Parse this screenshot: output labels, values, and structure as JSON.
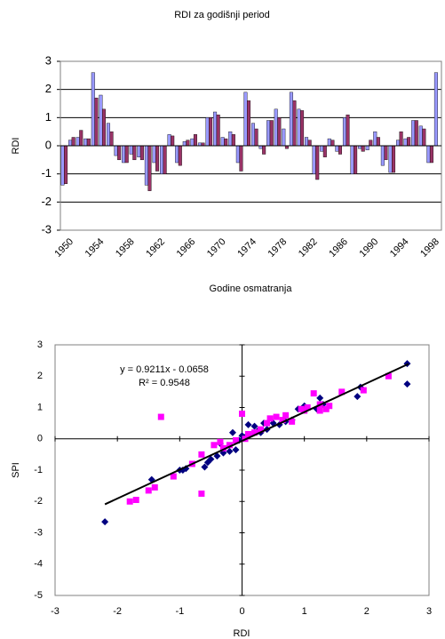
{
  "chart_data": [
    {
      "type": "bar",
      "title": "RDI za godišnji period",
      "x_label": "Godine osmatranja",
      "y_label": "RDI",
      "categories": [
        "1950",
        null,
        null,
        null,
        "1954",
        null,
        null,
        null,
        "1958",
        null,
        null,
        null,
        "1962",
        null,
        null,
        null,
        "1966",
        null,
        null,
        null,
        "1970",
        null,
        null,
        null,
        "1974",
        null,
        null,
        null,
        "1978",
        null,
        null,
        null,
        "1982",
        null,
        null,
        null,
        "1986",
        null,
        null,
        null,
        "1990",
        null,
        null,
        null,
        "1994",
        null,
        null,
        null,
        "1998",
        null
      ],
      "series": [
        {
          "color": "#9999ff",
          "values": [
            -1.4,
            0.2,
            0.3,
            0.25,
            2.6,
            1.8,
            0.8,
            -0.35,
            -0.6,
            -0.3,
            -0.4,
            -1.4,
            -0.6,
            -1.0,
            0.4,
            -0.6,
            0.15,
            0.25,
            0.1,
            1.0,
            1.2,
            0.3,
            0.5,
            -0.6,
            1.9,
            0.8,
            -0.1,
            0.9,
            1.3,
            0.6,
            1.9,
            1.3,
            0.3,
            -1.0,
            -0.2,
            0.25,
            -0.2,
            1.0,
            -1.0,
            -0.1,
            -0.15,
            0.5,
            -0.7,
            -0.95,
            0.2,
            0.25,
            0.9,
            0.7,
            -0.6,
            2.6
          ]
        },
        {
          "color": "#993366",
          "values": [
            -1.35,
            0.3,
            0.55,
            0.25,
            1.7,
            1.3,
            0.5,
            -0.5,
            -0.6,
            -0.5,
            -0.5,
            -1.6,
            -0.9,
            -1.0,
            0.35,
            -0.7,
            0.2,
            0.4,
            0.1,
            1.0,
            1.1,
            0.25,
            0.4,
            -0.9,
            1.6,
            0.6,
            -0.3,
            0.9,
            1.0,
            -0.1,
            1.6,
            1.25,
            0.2,
            -1.2,
            -0.4,
            0.2,
            -0.3,
            1.1,
            -1.0,
            -0.2,
            0.2,
            0.3,
            -0.5,
            -0.95,
            0.5,
            0.3,
            0.9,
            0.6,
            -0.6,
            null
          ]
        }
      ],
      "ylim": [
        -3,
        3
      ],
      "yticks": [
        -3,
        -2,
        -1,
        0,
        1,
        2,
        3
      ],
      "grid": true
    },
    {
      "type": "scatter",
      "x_label": "RDI",
      "y_label": "SPI",
      "annotations": [
        "y = 0.9211x - 0.0658",
        "R² = 0.9548"
      ],
      "series": [
        {
          "color": "#000080",
          "marker": "diamond",
          "x": [
            -2.2,
            -1.45,
            -1.0,
            -0.95,
            -0.9,
            -0.6,
            -0.55,
            -0.5,
            -0.4,
            -0.3,
            -0.2,
            -0.1,
            -0.15,
            -0.05,
            0.05,
            0.1,
            0.2,
            0.25,
            0.3,
            0.35,
            0.4,
            0.5,
            0.6,
            0.7,
            0.8,
            0.9,
            1.0,
            1.2,
            1.3,
            1.25,
            1.9,
            1.85,
            2.65,
            2.65,
            -0.35,
            0.0
          ],
          "values": [
            -2.65,
            -1.3,
            -1.0,
            -1.0,
            -0.95,
            -0.9,
            -0.75,
            -0.65,
            -0.55,
            -0.45,
            -0.4,
            -0.35,
            0.2,
            -0.05,
            0.05,
            0.45,
            0.4,
            0.25,
            0.2,
            0.5,
            0.3,
            0.5,
            0.45,
            0.55,
            0.6,
            0.95,
            1.05,
            0.95,
            1.1,
            1.3,
            1.65,
            1.35,
            2.4,
            1.75,
            -0.15,
            0.1
          ]
        },
        {
          "color": "#ff00ff",
          "marker": "square",
          "x": [
            -1.3,
            -0.65,
            -1.8,
            -1.7,
            -1.5,
            -1.4,
            -1.1,
            -0.8,
            -0.65,
            -0.45,
            -0.35,
            -0.3,
            -0.2,
            -0.1,
            0.0,
            0.05,
            0.1,
            0.2,
            0.3,
            0.4,
            0.45,
            0.55,
            0.65,
            0.7,
            0.8,
            0.95,
            1.05,
            1.15,
            1.25,
            1.35,
            1.4,
            1.6,
            1.95,
            2.35,
            1.25,
            1.0
          ],
          "values": [
            0.7,
            -1.75,
            -2.0,
            -1.95,
            -1.65,
            -1.55,
            -1.2,
            -0.8,
            -0.5,
            -0.2,
            -0.1,
            -0.3,
            -0.2,
            -0.05,
            0.8,
            0.0,
            0.15,
            0.2,
            0.3,
            0.5,
            0.65,
            0.7,
            0.6,
            0.75,
            0.55,
            0.95,
            1.0,
            1.45,
            0.9,
            0.95,
            1.05,
            1.5,
            1.55,
            2.0,
            1.1,
            0.9
          ]
        }
      ],
      "trendline": {
        "color": "#000000",
        "x": [
          -2.2,
          2.67
        ],
        "values": [
          -2.09,
          2.39
        ]
      },
      "xlim": [
        -3,
        3
      ],
      "xticks": [
        -3,
        -2,
        -1,
        0,
        1,
        2,
        3
      ],
      "ylim": [
        -5,
        3
      ],
      "yticks": [
        -5,
        -4,
        -3,
        -2,
        -1,
        0,
        1,
        2,
        3
      ]
    }
  ]
}
